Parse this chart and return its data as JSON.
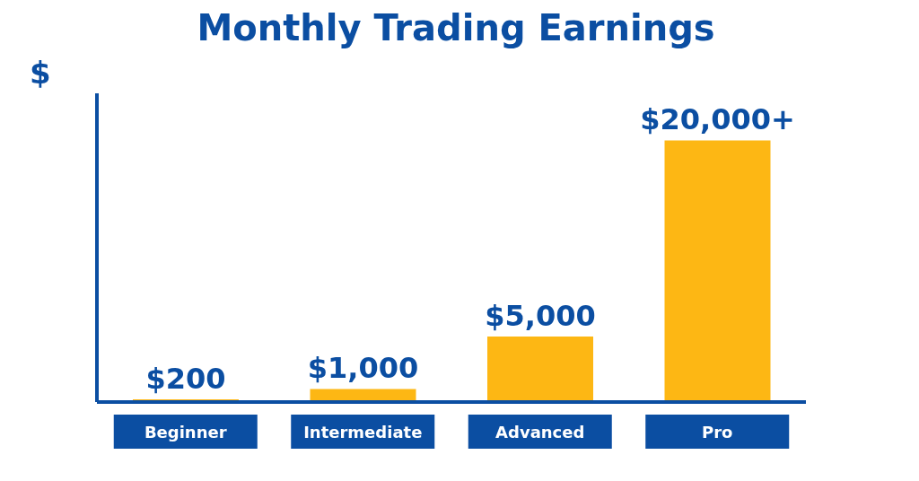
{
  "chart_data": {
    "type": "bar",
    "title": "Monthly Trading Earnings",
    "ylabel": "$",
    "categories": [
      "Beginner",
      "Intermediate",
      "Advanced",
      "Pro"
    ],
    "values": [
      200,
      1000,
      5000,
      20000
    ],
    "value_labels": [
      "$200",
      "$1,000",
      "$5,000",
      "$20,000+"
    ],
    "color": "#fdb714"
  }
}
